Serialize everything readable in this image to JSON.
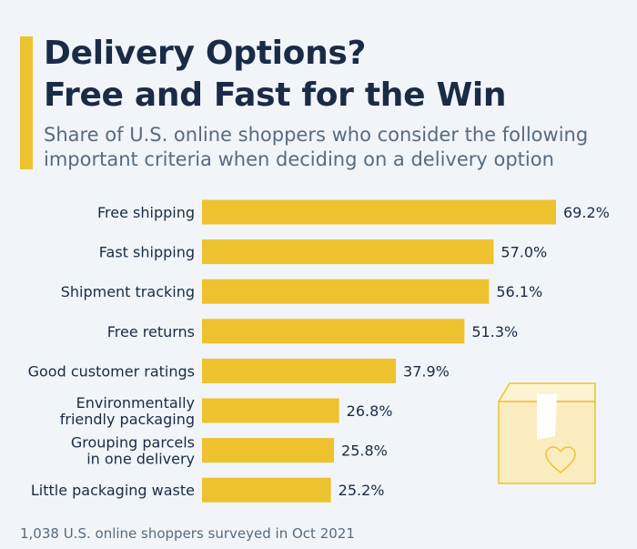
{
  "title_line1": "Delivery Options?",
  "title_line2": "Free and Fast for the Win",
  "subtitle_line1": "Share of U.S. online shoppers who consider the following",
  "subtitle_line2": "important criteria when deciding on a delivery option",
  "footer": "1,038 U.S. online shoppers surveyed in Oct 2021",
  "colors": {
    "accent": "#edc22e",
    "bar": "#edc22e",
    "title": "#1a2b45",
    "text": "#1a2b45",
    "subtitle": "#576b80",
    "background": "#f1f5f9"
  },
  "illustration_icon": "parcel-box-with-heart-icon",
  "chart_data": {
    "type": "bar",
    "orientation": "horizontal",
    "categories": [
      [
        "Free shipping"
      ],
      [
        "Fast shipping"
      ],
      [
        "Shipment tracking"
      ],
      [
        "Free returns"
      ],
      [
        "Good customer ratings"
      ],
      [
        "Environmentally",
        "friendly packaging"
      ],
      [
        "Grouping parcels",
        "in one delivery"
      ],
      [
        "Little packaging waste"
      ]
    ],
    "values": [
      69.2,
      57.0,
      56.1,
      51.3,
      37.9,
      26.8,
      25.8,
      25.2
    ],
    "value_labels": [
      "69.2%",
      "57.0%",
      "56.1%",
      "51.3%",
      "37.9%",
      "26.8%",
      "25.8%",
      "25.2%"
    ],
    "unit": "%",
    "title": "",
    "xlabel": "",
    "ylabel": "",
    "grid": false,
    "legend": "none"
  }
}
